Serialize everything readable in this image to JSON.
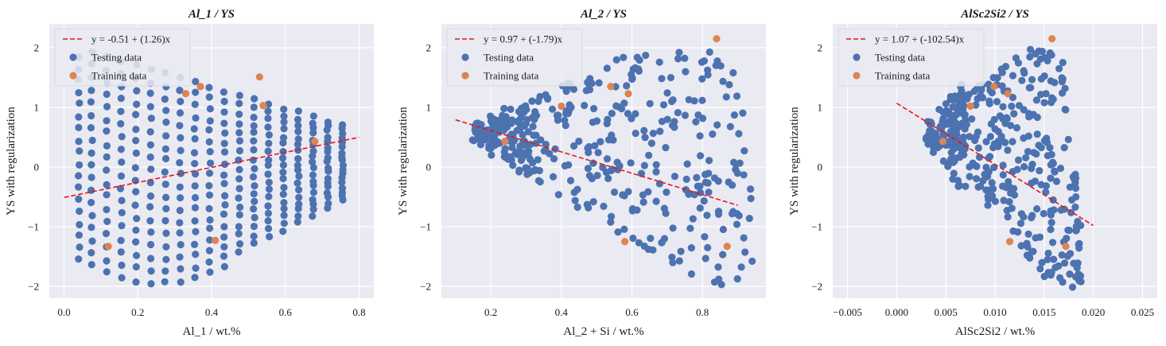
{
  "colors": {
    "panel_bg": "#EAEAF2",
    "grid": "#FFFFFF",
    "testing": "#4C72B0",
    "training": "#DD8452",
    "fit_line": "#E8141B"
  },
  "legend_labels": {
    "testing": "Testing data",
    "training": "Training data"
  },
  "chart_data": [
    {
      "type": "scatter",
      "title": "Al_1 / YS",
      "xlabel": "Al_1 / wt.%",
      "ylabel": "YS with regularization",
      "xlim": [
        -0.04,
        0.84
      ],
      "ylim": [
        -2.2,
        2.4
      ],
      "xticks": [
        0.0,
        0.2,
        0.4,
        0.6,
        0.8
      ],
      "xtick_labels": [
        "0.0",
        "0.2",
        "0.4",
        "0.6",
        "0.8"
      ],
      "yticks": [
        -2,
        -1,
        0,
        1,
        2
      ],
      "ytick_labels": [
        "−2",
        "−1",
        "0",
        "1",
        "2"
      ],
      "grid": true,
      "legend_position": "upper-left",
      "fit": {
        "label": "y = -0.51 + (1.26)x",
        "x": [
          0.0,
          0.8
        ],
        "intercept": -0.51,
        "slope": 1.26
      },
      "testing_pattern": "fan of points over columns x = 0.04 to 0.76, y between about -2.0 and 2.0, narrowing towards larger x",
      "testing_columns": [
        0.04,
        0.075,
        0.115,
        0.155,
        0.195,
        0.235,
        0.275,
        0.315,
        0.355,
        0.395,
        0.435,
        0.475,
        0.515,
        0.555,
        0.595,
        0.635,
        0.675,
        0.715,
        0.755
      ],
      "training": [
        {
          "x": 0.12,
          "y": -1.33
        },
        {
          "x": 0.33,
          "y": 1.23
        },
        {
          "x": 0.37,
          "y": 1.35
        },
        {
          "x": 0.41,
          "y": -1.23
        },
        {
          "x": 0.53,
          "y": 1.51
        },
        {
          "x": 0.54,
          "y": 1.03
        },
        {
          "x": 0.68,
          "y": 0.43
        }
      ]
    },
    {
      "type": "scatter",
      "title": "Al_2 / YS",
      "xlabel": "Al_2 + Si / wt.%",
      "ylabel": "YS with regularization",
      "xlim": [
        0.06,
        0.98
      ],
      "ylim": [
        -2.2,
        2.4
      ],
      "xticks": [
        0.2,
        0.4,
        0.6,
        0.8
      ],
      "xtick_labels": [
        "0.2",
        "0.4",
        "0.6",
        "0.8"
      ],
      "yticks": [
        -2,
        -1,
        0,
        1,
        2
      ],
      "ytick_labels": [
        "−2",
        "−1",
        "0",
        "1",
        "2"
      ],
      "grid": true,
      "legend_position": "upper-left",
      "fit": {
        "label": "y = 0.97 + (-1.79)x",
        "x": [
          0.1,
          0.9
        ],
        "intercept": 0.97,
        "slope": -1.79
      },
      "testing_pattern": "diagonal band of points from x = 0.15 to 0.94, falling from about 0.7 at the left to about -1.6 at the right",
      "training": [
        {
          "x": 0.24,
          "y": 0.43
        },
        {
          "x": 0.4,
          "y": 1.02
        },
        {
          "x": 0.54,
          "y": 1.35
        },
        {
          "x": 0.58,
          "y": -1.25
        },
        {
          "x": 0.59,
          "y": 1.23
        },
        {
          "x": 0.84,
          "y": 2.15
        },
        {
          "x": 0.87,
          "y": -1.33
        }
      ]
    },
    {
      "type": "scatter",
      "title": "AlSc2Si2 / YS",
      "xlabel": "AlSc2Si2 / wt.%",
      "ylabel": "YS with regularization",
      "xlim": [
        -0.0065,
        0.0265
      ],
      "ylim": [
        -2.2,
        2.4
      ],
      "xticks": [
        -0.005,
        0.0,
        0.005,
        0.01,
        0.015,
        0.02,
        0.025
      ],
      "xtick_labels": [
        "−0.005",
        "0.000",
        "0.005",
        "0.010",
        "0.015",
        "0.020",
        "0.025"
      ],
      "yticks": [
        -2,
        -1,
        0,
        1,
        2
      ],
      "ytick_labels": [
        "−2",
        "−1",
        "0",
        "1",
        "2"
      ],
      "grid": true,
      "legend_position": "upper-left",
      "fit": {
        "label": "y = 1.07 + (-102.54)x",
        "x": [
          0.0,
          0.02
        ],
        "intercept": 1.07,
        "slope": -102.54
      },
      "testing_pattern": "wedge of points from x = 0.003 to 0.0188, falling from about 0.7 at the left to about -2.0 near x = 0.016",
      "training": [
        {
          "x": 0.0047,
          "y": 0.43
        },
        {
          "x": 0.0075,
          "y": 1.02
        },
        {
          "x": 0.0099,
          "y": 1.35
        },
        {
          "x": 0.0113,
          "y": 1.23
        },
        {
          "x": 0.0115,
          "y": -1.25
        },
        {
          "x": 0.0158,
          "y": 2.15
        },
        {
          "x": 0.0172,
          "y": -1.33
        }
      ]
    }
  ]
}
